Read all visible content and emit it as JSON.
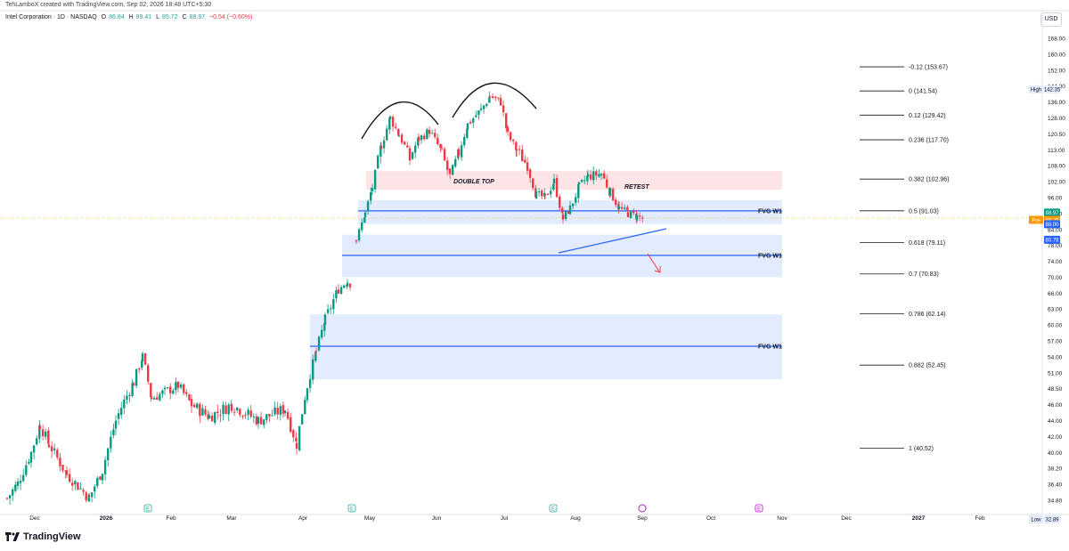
{
  "header": {
    "creator": "TehLamboX created with TradingView.com, Sep 02, 2026 18:48 UTC+5:30",
    "symbol": "Intel Corporation · 1D · NASDAQ",
    "o_label": "O",
    "o_value": "86.84",
    "h_label": "H",
    "h_value": "89.41",
    "l_label": "L",
    "l_value": "85.72",
    "c_label": "C",
    "c_value": "88.97",
    "change": "−0.54 (−0.60%)",
    "currency": "USD"
  },
  "footer": {
    "brand": "TradingView"
  },
  "chart_data": {
    "type": "candlestick",
    "title": "Intel Corporation · 1D · NASDAQ",
    "y_ticks": [
      "168.00",
      "160.00",
      "152.00",
      "144.00",
      "136.00",
      "128.00",
      "120.50",
      "113.00",
      "108.00",
      "102.00",
      "96.00",
      "90.00",
      "84.00",
      "78.00",
      "74.00",
      "70.00",
      "66.00",
      "63.00",
      "60.00",
      "57.00",
      "54.00",
      "51.00",
      "48.50",
      "46.00",
      "44.00",
      "42.00",
      "40.00",
      "38.20",
      "36.40",
      "34.80"
    ],
    "x_ticks": [
      "Dec",
      "2026",
      "Feb",
      "Mar",
      "Apr",
      "May",
      "Jun",
      "Jul",
      "Aug",
      "Sep",
      "Oct",
      "Nov",
      "Dec",
      "2027",
      "Feb",
      "Ma"
    ],
    "bold_x_ticks": [
      "2026",
      "2027"
    ],
    "price_labels": [
      {
        "label": "High",
        "value": "142.35",
        "color": "#e3eafc",
        "text": "#131722"
      },
      {
        "label": "",
        "value": "88.97",
        "color": "#089981",
        "text": "#ffffff"
      },
      {
        "label": "Pre",
        "value": "88.29",
        "color": "#ff9800",
        "text": "#ffffff"
      },
      {
        "label": "",
        "value": "88.00",
        "color": "#2962ff",
        "text": "#ffffff"
      },
      {
        "label": "",
        "value": "80.78",
        "color": "#2962ff",
        "text": "#ffffff"
      },
      {
        "label": "Low",
        "value": "32.89",
        "color": "#e3eafc",
        "text": "#131722"
      }
    ],
    "fib_levels": [
      {
        "ratio": "-0.12",
        "price": "153.67"
      },
      {
        "ratio": "0",
        "price": "141.54"
      },
      {
        "ratio": "0.12",
        "price": "129.42"
      },
      {
        "ratio": "0.236",
        "price": "117.70"
      },
      {
        "ratio": "0.382",
        "price": "102.96"
      },
      {
        "ratio": "0.5",
        "price": "91.03"
      },
      {
        "ratio": "0.618",
        "price": "79.11"
      },
      {
        "ratio": "0.7",
        "price": "70.83"
      },
      {
        "ratio": "0.786",
        "price": "62.14"
      },
      {
        "ratio": "0.882",
        "price": "52.45"
      },
      {
        "ratio": "1",
        "price": "40.52"
      }
    ],
    "zones": [
      {
        "name": "",
        "color": "#f23645",
        "top": 106,
        "bottom": 99
      },
      {
        "name": "FVG W1",
        "color": "#2962ff",
        "top": 95,
        "bottom": 86,
        "line": 91
      },
      {
        "name": "FVG W1",
        "color": "#2962ff",
        "top": 82,
        "bottom": 70,
        "line": 75.5
      },
      {
        "name": "FVG W1",
        "color": "#2962ff",
        "top": 62,
        "bottom": 50,
        "line": 56
      }
    ],
    "annotations": [
      "DOUBLE TOP",
      "RETEST"
    ],
    "accent_up": "#089981",
    "accent_down": "#f23645",
    "zone_blue": "#2962ff",
    "zone_red": "#f23645",
    "fib_color": "#131722",
    "current_price": "88.97",
    "high": "142.35",
    "low": "32.89"
  }
}
